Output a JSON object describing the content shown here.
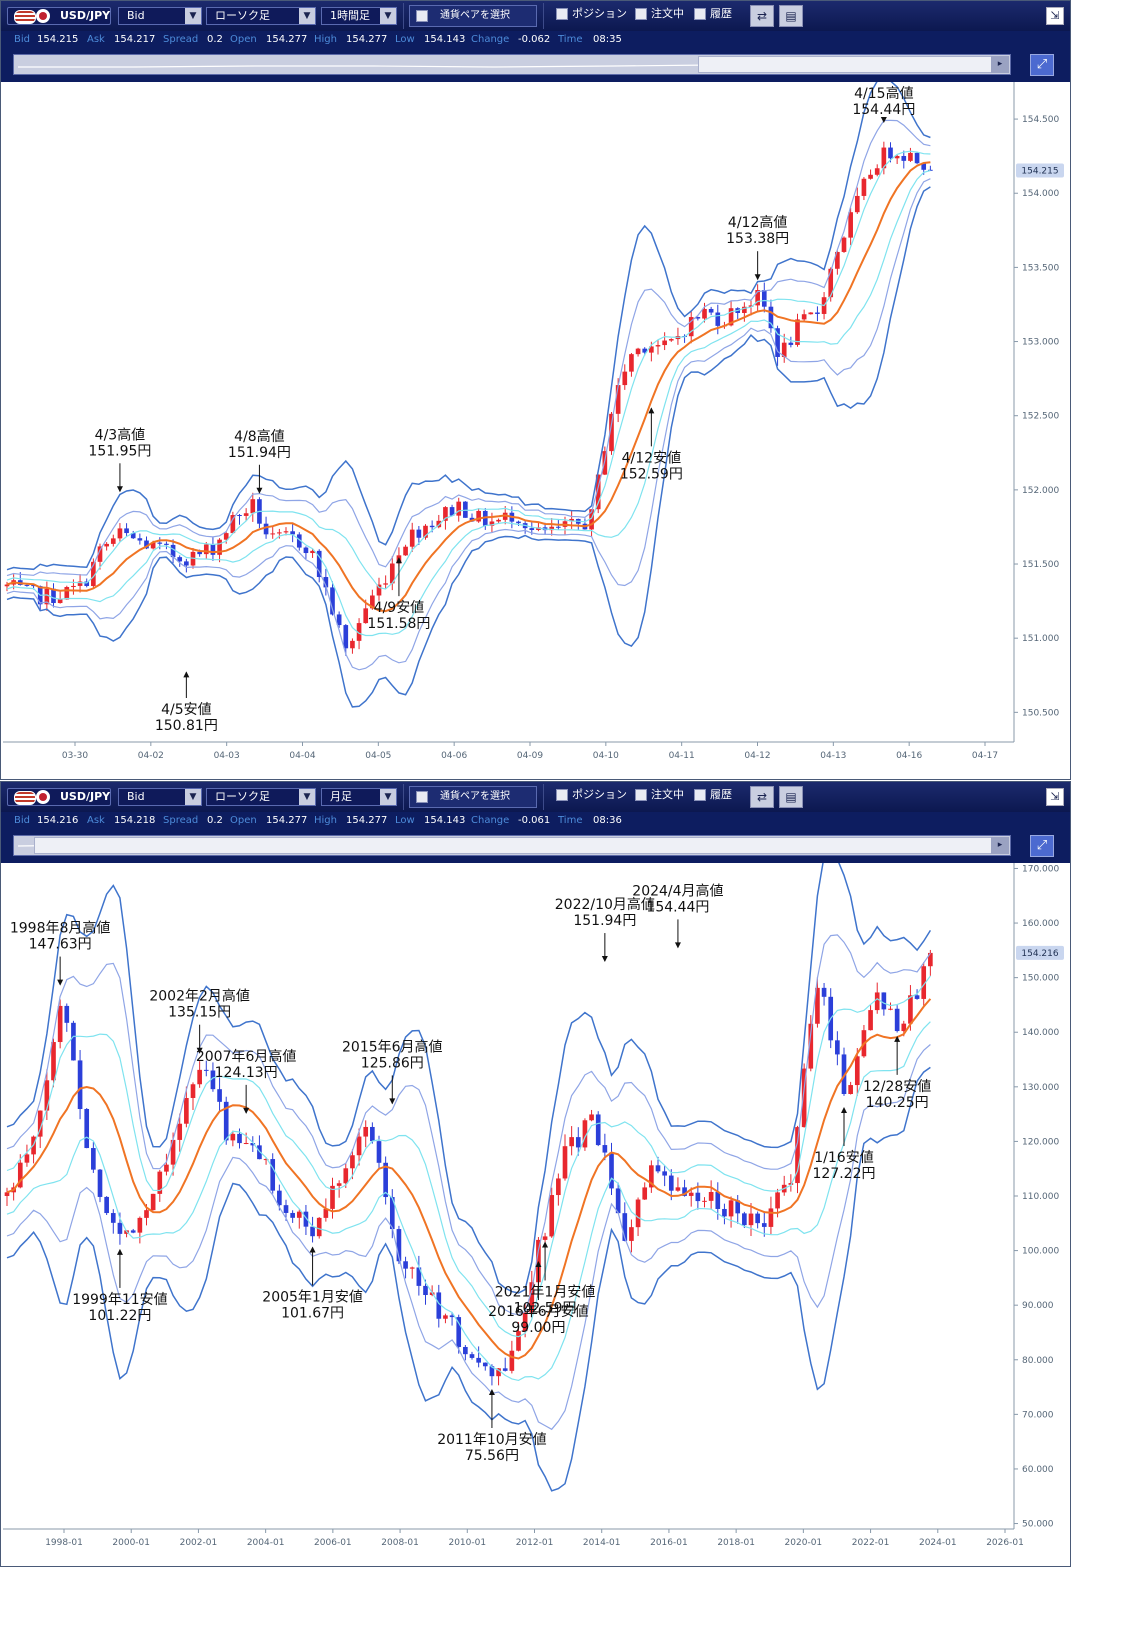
{
  "panels": [
    {
      "toolbar": {
        "pair": "USD/JPY",
        "price_type": "Bid",
        "chart_type": "ローソク足",
        "timeframe": "1時間足",
        "pair_select": "通貨ペアを選択",
        "positions": "ポジション",
        "orders": "注文中",
        "history": "履歴"
      },
      "quote": {
        "bid_label": "Bid",
        "bid": "154.215",
        "ask_label": "Ask",
        "ask": "154.217",
        "spread_label": "Spread",
        "spread": "0.2",
        "open_label": "Open",
        "open": "154.277",
        "high_label": "High",
        "high": "154.277",
        "low_label": "Low",
        "low": "154.143",
        "change_label": "Change",
        "change": "-0.062",
        "time_label": "Time",
        "time": "08:35"
      },
      "current_price_badge": "154.215"
    },
    {
      "toolbar": {
        "pair": "USD/JPY",
        "price_type": "Bid",
        "chart_type": "ローソク足",
        "timeframe": "月足",
        "pair_select": "通貨ペアを選択",
        "positions": "ポジション",
        "orders": "注文中",
        "history": "履歴"
      },
      "quote": {
        "bid_label": "Bid",
        "bid": "154.216",
        "ask_label": "Ask",
        "ask": "154.218",
        "spread_label": "Spread",
        "spread": "0.2",
        "open_label": "Open",
        "open": "154.277",
        "high_label": "High",
        "high": "154.277",
        "low_label": "Low",
        "low": "154.143",
        "change_label": "Change",
        "change": "-0.061",
        "time_label": "Time",
        "time": "08:36"
      },
      "current_price_badge": "154.216"
    }
  ],
  "colors": {
    "up_candle": "#e8272e",
    "down_candle": "#2b3fd9",
    "sma": "#f07424",
    "band1": "#7fe3ef",
    "band2": "#8fa5e6",
    "band3": "#3f74cc",
    "badge": "#c9d6ef",
    "axis_text": "#556677",
    "annotation": "#111111"
  },
  "chart_data": [
    {
      "type": "line",
      "timeframe": "1時間足",
      "candle_style": "candlestick with moving average and three-sigma envelope bands",
      "ylim": [
        150.3,
        154.75
      ],
      "y_ticks": [
        "150.500",
        "151.000",
        "151.500",
        "152.000",
        "152.500",
        "153.000",
        "153.500",
        "154.000",
        "154.500"
      ],
      "x_ticks": [
        "03-30",
        "04-02",
        "04-03",
        "04-04",
        "04-05",
        "04-06",
        "04-09",
        "04-10",
        "04-11",
        "04-12",
        "04-13",
        "04-16",
        "04-17"
      ],
      "price_path": [
        {
          "x": "03-30",
          "y": 151.35
        },
        {
          "x": "03-30",
          "y": 151.3
        },
        {
          "x": "03-30",
          "y": 151.28
        },
        {
          "x": "03-30",
          "y": 151.3
        },
        {
          "x": "04-02",
          "y": 151.35
        },
        {
          "x": "04-02",
          "y": 151.6
        },
        {
          "x": "04-02",
          "y": 151.7
        },
        {
          "x": "04-02",
          "y": 151.65
        },
        {
          "x": "04-03",
          "y": 151.6
        },
        {
          "x": "04-03",
          "y": 151.55
        },
        {
          "x": "04-03",
          "y": 151.55
        },
        {
          "x": "04-03",
          "y": 151.62
        },
        {
          "x": "04-04",
          "y": 151.8
        },
        {
          "x": "04-04",
          "y": 151.9
        },
        {
          "x": "04-04",
          "y": 151.65
        },
        {
          "x": "04-04",
          "y": 151.68
        },
        {
          "x": "04-05",
          "y": 151.62
        },
        {
          "x": "04-05",
          "y": 151.3
        },
        {
          "x": "04-05",
          "y": 150.9
        },
        {
          "x": "04-05",
          "y": 151.2
        },
        {
          "x": "04-06",
          "y": 151.4
        },
        {
          "x": "04-06",
          "y": 151.65
        },
        {
          "x": "04-06",
          "y": 151.75
        },
        {
          "x": "04-06",
          "y": 151.82
        },
        {
          "x": "04-09",
          "y": 151.9
        },
        {
          "x": "04-09",
          "y": 151.8
        },
        {
          "x": "04-09",
          "y": 151.78
        },
        {
          "x": "04-09",
          "y": 151.85
        },
        {
          "x": "04-10",
          "y": 151.7
        },
        {
          "x": "04-10",
          "y": 151.72
        },
        {
          "x": "04-10",
          "y": 151.75
        },
        {
          "x": "04-10",
          "y": 151.8
        },
        {
          "x": "04-11",
          "y": 152.5
        },
        {
          "x": "04-11",
          "y": 152.9
        },
        {
          "x": "04-11",
          "y": 153.0
        },
        {
          "x": "04-11",
          "y": 152.95
        },
        {
          "x": "04-12",
          "y": 153.1
        },
        {
          "x": "04-12",
          "y": 153.2
        },
        {
          "x": "04-12",
          "y": 153.15
        },
        {
          "x": "04-12",
          "y": 153.25
        },
        {
          "x": "04-13",
          "y": 153.3
        },
        {
          "x": "04-13",
          "y": 152.9
        },
        {
          "x": "04-13",
          "y": 153.1
        },
        {
          "x": "04-13",
          "y": 153.2
        },
        {
          "x": "04-13",
          "y": 153.6
        },
        {
          "x": "04-13",
          "y": 153.9
        },
        {
          "x": "04-16",
          "y": 154.2
        },
        {
          "x": "04-16",
          "y": 154.3
        },
        {
          "x": "04-16",
          "y": 154.25
        },
        {
          "x": "04-16",
          "y": 154.2
        }
      ],
      "annotations": [
        {
          "label": "4/3高値",
          "value": "151.95円",
          "x": "04-04",
          "price": 151.95
        },
        {
          "label": "4/5安値",
          "value": "150.81円",
          "x": "04-05",
          "price": 150.81
        },
        {
          "label": "4/8高値",
          "value": "151.94円",
          "x": "04-09",
          "price": 151.94
        },
        {
          "label": "4/9安値",
          "value": "151.58円",
          "x": "04-10",
          "price": 151.58
        },
        {
          "label": "4/12高値",
          "value": "153.38円",
          "x": "04-12",
          "price": 153.38
        },
        {
          "label": "4/12安値",
          "value": "152.59円",
          "x": "04-13",
          "price": 152.59
        },
        {
          "label": "4/15高値",
          "value": "154.44円",
          "x": "04-16",
          "price": 154.44
        }
      ]
    },
    {
      "type": "line",
      "timeframe": "月足",
      "candle_style": "candlestick with moving average and three-sigma envelope bands",
      "ylim": [
        49,
        171
      ],
      "y_ticks": [
        "50.000",
        "60.000",
        "70.000",
        "80.000",
        "90.000",
        "100.000",
        "110.000",
        "120.000",
        "130.000",
        "140.000",
        "150.000",
        "160.000",
        "170.000"
      ],
      "x_ticks": [
        "1998-01",
        "2000-01",
        "2002-01",
        "2004-01",
        "2006-01",
        "2008-01",
        "2010-01",
        "2012-01",
        "2014-01",
        "2016-01",
        "2018-01",
        "2020-01",
        "2022-01",
        "2024-01",
        "2026-01"
      ],
      "price_path": [
        {
          "x": "1997",
          "y": 110
        },
        {
          "x": "1997.5",
          "y": 120
        },
        {
          "x": "1998.6",
          "y": 147
        },
        {
          "x": "1999.2",
          "y": 115
        },
        {
          "x": "1999.9",
          "y": 102
        },
        {
          "x": "2000.5",
          "y": 108
        },
        {
          "x": "2001.3",
          "y": 122
        },
        {
          "x": "2002.1",
          "y": 134
        },
        {
          "x": "2002.6",
          "y": 120
        },
        {
          "x": "2003.3",
          "y": 118
        },
        {
          "x": "2004.2",
          "y": 107
        },
        {
          "x": "2005.0",
          "y": 103
        },
        {
          "x": "2005.9",
          "y": 116
        },
        {
          "x": "2007.4",
          "y": 123
        },
        {
          "x": "2008.3",
          "y": 100
        },
        {
          "x": "2009.2",
          "y": 92
        },
        {
          "x": "2010.4",
          "y": 85
        },
        {
          "x": "2011.8",
          "y": 77
        },
        {
          "x": "2012.6",
          "y": 79
        },
        {
          "x": "2013.5",
          "y": 100
        },
        {
          "x": "2014.9",
          "y": 118
        },
        {
          "x": "2015.5",
          "y": 124
        },
        {
          "x": "2016.4",
          "y": 102
        },
        {
          "x": "2016.9",
          "y": 114
        },
        {
          "x": "2018.2",
          "y": 110
        },
        {
          "x": "2019.0",
          "y": 109
        },
        {
          "x": "2020.0",
          "y": 108
        },
        {
          "x": "2021.0",
          "y": 103
        },
        {
          "x": "2021.9",
          "y": 114
        },
        {
          "x": "2022.8",
          "y": 150
        },
        {
          "x": "2023.1",
          "y": 128
        },
        {
          "x": "2023.9",
          "y": 148
        },
        {
          "x": "2024.0",
          "y": 141
        },
        {
          "x": "2024.3",
          "y": 154
        }
      ],
      "annotations": [
        {
          "label": "1998年8月高値",
          "value": "147.63円",
          "x": "1998-08",
          "price": 147.63
        },
        {
          "label": "1999年11安値",
          "value": "101.22円",
          "x": "1999-11",
          "price": 101.22
        },
        {
          "label": "2002年2月高値",
          "value": "135.15円",
          "x": "2002-02",
          "price": 135.15
        },
        {
          "label": "2005年1月安値",
          "value": "101.67円",
          "x": "2005-01",
          "price": 101.67
        },
        {
          "label": "2007年6月高値",
          "value": "124.13円",
          "x": "2007-06",
          "price": 124.13
        },
        {
          "label": "2011年10月安値",
          "value": "75.56円",
          "x": "2011-10",
          "price": 75.56
        },
        {
          "label": "2015年6月高値",
          "value": "125.86円",
          "x": "2015-06",
          "price": 125.86
        },
        {
          "label": "2016年6月安値",
          "value": "99.00円",
          "x": "2016-06",
          "price": 99.0
        },
        {
          "label": "2021年1月安値",
          "value": "102.59円",
          "x": "2021-01",
          "price": 102.59
        },
        {
          "label": "2022/10月高値",
          "value": "151.94円",
          "x": "2022-10",
          "price": 151.94
        },
        {
          "label": "2024/4月高値",
          "value": "154.44円",
          "x": "2024-04",
          "price": 154.44
        },
        {
          "label": "12/28安値",
          "value": "140.25円",
          "x": "2023-12",
          "price": 140.25
        },
        {
          "label": "1/16安値",
          "value": "127.22円",
          "x": "2023-01",
          "price": 127.22
        }
      ]
    }
  ]
}
